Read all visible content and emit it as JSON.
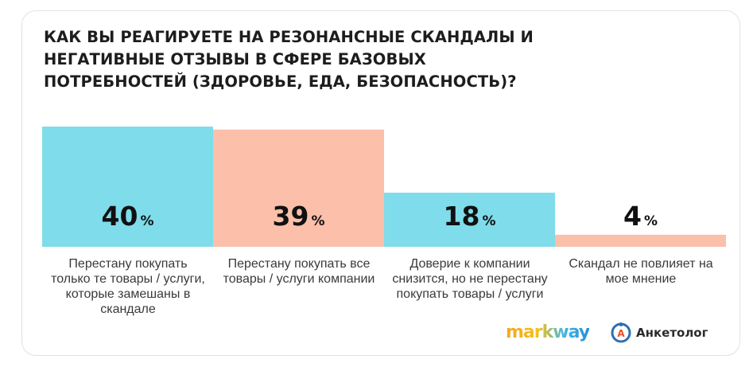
{
  "chart_data": {
    "type": "bar",
    "title": "КАК ВЫ РЕАГИРУЕТЕ НА РЕЗОНАНСНЫЕ СКАНДАЛЫ И НЕГАТИВНЫЕ ОТЗЫВЫ В СФЕРЕ БАЗОВЫХ ПОТРЕБНОСТЕЙ (ЗДОРОВЬЕ, ЕДА, БЕЗОПАСНОСТЬ)?",
    "categories": [
      "Перестану покупать только те товары / услуги, которые замешаны в скандале",
      "Перестану покупать все товары / услуги компании",
      "Доверие к компании снизится, но не перестану покупать товары / услуги",
      "Скандал не повлияет на мое мнение"
    ],
    "values": [
      40,
      39,
      18,
      4
    ],
    "value_suffix": "%",
    "colors": [
      "#7fdcea",
      "#fcbfaa",
      "#7fdcea",
      "#fcbfaa"
    ],
    "ylim": [
      0,
      40
    ]
  },
  "logos": {
    "markway": "markway",
    "anketolog": "Анкетолог",
    "anketolog_letter": "A"
  }
}
